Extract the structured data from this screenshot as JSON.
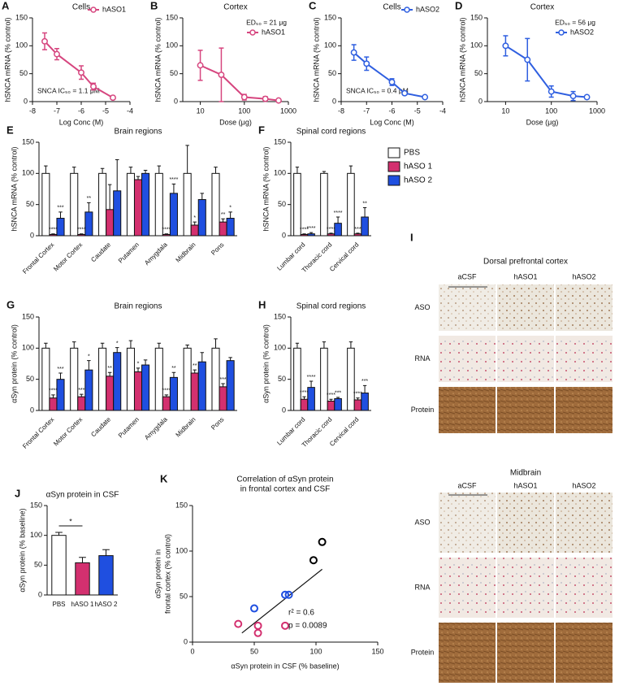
{
  "chart_data": [
    {
      "label": "A",
      "type": "line",
      "title": "Cells",
      "xlabel": "Log Conc (M)",
      "ylabel": "hSNCA mRNA (% control)",
      "xlim": [
        -8,
        -4
      ],
      "xticks": [
        -8,
        -7,
        -6,
        -5,
        -4
      ],
      "ylim": [
        0,
        150
      ],
      "yticks": [
        0,
        50,
        100,
        150
      ],
      "annotation": "SNCA IC₅₀ = 1.1 μM",
      "series": [
        {
          "name": "hASO1",
          "color": "#d6467f",
          "x": [
            -7.5,
            -7,
            -6,
            -5.5,
            -4.7
          ],
          "values": [
            108,
            85,
            52,
            27,
            7
          ],
          "errors": [
            15,
            10,
            12,
            6,
            2
          ]
        }
      ]
    },
    {
      "label": "B",
      "type": "line",
      "title": "Cortex",
      "xlabel": "Dose (μg)",
      "ylabel": "hSNCA mRNA (% control)",
      "xscale": "log",
      "xlim": [
        4,
        1000
      ],
      "xticks": [
        10,
        100,
        1000
      ],
      "ylim": [
        0,
        150
      ],
      "yticks": [
        0,
        50,
        100,
        150
      ],
      "annotation": "ED₅₀ = 21 μg",
      "series": [
        {
          "name": "hASO1",
          "color": "#d6467f",
          "x": [
            10,
            30,
            100,
            300,
            600
          ],
          "values": [
            65,
            48,
            8,
            5,
            2
          ],
          "errors": [
            27,
            48,
            5,
            4,
            2
          ]
        }
      ]
    },
    {
      "label": "C",
      "type": "line",
      "title": "Cells",
      "xlabel": "Log Conc (M)",
      "ylabel": "hSNCA mRNA (% control)",
      "xlim": [
        -8,
        -4
      ],
      "xticks": [
        -8,
        -7,
        -6,
        -5,
        -4
      ],
      "ylim": [
        0,
        150
      ],
      "yticks": [
        0,
        50,
        100,
        150
      ],
      "annotation": "SNCA IC₅₀ = 0.4 μM",
      "series": [
        {
          "name": "hASO2",
          "color": "#2f5fe0",
          "x": [
            -7.5,
            -7,
            -6,
            -5.5,
            -4.7
          ],
          "values": [
            88,
            68,
            35,
            15,
            8
          ],
          "errors": [
            14,
            12,
            6,
            3,
            2
          ]
        }
      ]
    },
    {
      "label": "D",
      "type": "line",
      "title": "Cortex",
      "xlabel": "Dose (μg)",
      "ylabel": "hSNCA mRNA (% control)",
      "xscale": "log",
      "xlim": [
        4,
        1000
      ],
      "xticks": [
        10,
        100,
        1000
      ],
      "ylim": [
        0,
        150
      ],
      "yticks": [
        0,
        50,
        100,
        150
      ],
      "annotation": "ED₅₀ = 56 μg",
      "series": [
        {
          "name": "hASO2",
          "color": "#2f5fe0",
          "x": [
            10,
            30,
            100,
            300,
            600
          ],
          "values": [
            100,
            75,
            18,
            10,
            8
          ],
          "errors": [
            18,
            38,
            10,
            8,
            3
          ]
        }
      ]
    },
    {
      "label": "E",
      "type": "bar",
      "title": "Brain regions",
      "ylabel": "hSNCA mRNA (% control)",
      "categories": [
        "Frontal Cortex",
        "Motor Cortex",
        "Caudate",
        "Putamen",
        "Amygdala",
        "Midbrain",
        "Pons"
      ],
      "ylim": [
        0,
        150
      ],
      "yticks": [
        0,
        50,
        100,
        150
      ],
      "series": [
        {
          "values": [
            100,
            100,
            100,
            100,
            100,
            100,
            100
          ],
          "errors": [
            12,
            10,
            8,
            10,
            12,
            45,
            10
          ]
        },
        {
          "values": [
            2,
            2,
            42,
            90,
            2,
            17,
            22
          ],
          "errors": [
            1,
            1,
            40,
            5,
            1,
            5,
            5
          ],
          "stars": [
            "****",
            "****",
            null,
            null,
            "****",
            "*",
            "**"
          ]
        },
        {
          "values": [
            28,
            38,
            72,
            100,
            68,
            58,
            28
          ],
          "errors": [
            10,
            15,
            50,
            5,
            15,
            10,
            10
          ],
          "stars": [
            "***",
            "**",
            null,
            null,
            "****",
            null,
            "*"
          ]
        }
      ]
    },
    {
      "label": "F",
      "type": "bar",
      "title": "Spinal cord regions",
      "ylabel": "hSNCA mRNA (% control)",
      "categories": [
        "Lumbar cord",
        "Thoracic cord",
        "Cervical cord"
      ],
      "ylim": [
        0,
        150
      ],
      "yticks": [
        0,
        50,
        100,
        150
      ],
      "series": [
        {
          "values": [
            100,
            100,
            100
          ],
          "errors": [
            10,
            3,
            12
          ]
        },
        {
          "values": [
            2,
            3,
            3
          ],
          "errors": [
            1,
            1,
            1
          ],
          "stars": [
            "****",
            "****",
            "***"
          ]
        },
        {
          "values": [
            3,
            20,
            30
          ],
          "errors": [
            2,
            10,
            15
          ],
          "stars": [
            "****",
            "****",
            "**"
          ]
        }
      ]
    },
    {
      "label": "G",
      "type": "bar",
      "title": "Brain regions",
      "ylabel": "αSyn protein (% control)",
      "categories": [
        "Frontal Cortex",
        "Motor Cortex",
        "Caudate",
        "Putamen",
        "Amygdala",
        "Midbrain",
        "Pons"
      ],
      "ylim": [
        0,
        150
      ],
      "yticks": [
        0,
        50,
        100,
        150
      ],
      "series": [
        {
          "values": [
            100,
            100,
            100,
            100,
            100,
            100,
            100
          ],
          "errors": [
            8,
            10,
            8,
            12,
            8,
            5,
            15
          ]
        },
        {
          "values": [
            20,
            22,
            55,
            62,
            22,
            60,
            38
          ],
          "errors": [
            5,
            4,
            6,
            6,
            3,
            5,
            5
          ],
          "stars": [
            "****",
            "***",
            "**",
            "*",
            "****",
            "**",
            "***"
          ]
        },
        {
          "values": [
            50,
            65,
            93,
            73,
            53,
            78,
            80
          ],
          "errors": [
            10,
            15,
            8,
            8,
            8,
            15,
            5
          ],
          "stars": [
            "***",
            "*",
            "*",
            null,
            "**",
            null,
            null
          ]
        }
      ]
    },
    {
      "label": "H",
      "type": "bar",
      "title": "Spinal cord regions",
      "ylabel": "αSyn protein (% control)",
      "categories": [
        "Lumbar cord",
        "Thoracic cord",
        "Cervical cord"
      ],
      "ylim": [
        0,
        150
      ],
      "yticks": [
        0,
        50,
        100,
        150
      ],
      "series": [
        {
          "values": [
            100,
            100,
            100
          ],
          "errors": [
            8,
            10,
            10
          ]
        },
        {
          "values": [
            18,
            15,
            17
          ],
          "errors": [
            4,
            3,
            3
          ],
          "stars": [
            "****",
            "****",
            "****"
          ]
        },
        {
          "values": [
            37,
            19,
            28
          ],
          "errors": [
            10,
            2,
            12
          ],
          "stars": [
            "****",
            "***",
            "***"
          ]
        }
      ]
    },
    {
      "label": "J",
      "type": "bar",
      "title": "αSyn protein in CSF",
      "ylabel": "αSyn protein (% baseline)",
      "categories": [
        "PBS",
        "hASO 1",
        "hASO 2"
      ],
      "ylim": [
        0,
        150
      ],
      "yticks": [
        0,
        50,
        100,
        150
      ],
      "series": [
        {
          "values": [
            100,
            54,
            66
          ],
          "errors": [
            5,
            9,
            10
          ]
        }
      ],
      "significance": {
        "label": "*",
        "categories": [
          "PBS",
          "hASO 1"
        ]
      }
    },
    {
      "label": "K",
      "type": "scatter",
      "title": [
        "Correlation of αSyn protein",
        "in frontal cortex and CSF"
      ],
      "xlabel": "αSyn protein in CSF (% baseline)",
      "ylabel": [
        "αSyn protein in",
        "frontal cortex (% control)"
      ],
      "xlim": [
        0,
        150
      ],
      "xticks": [
        0,
        50,
        100,
        150
      ],
      "ylim": [
        0,
        150
      ],
      "yticks": [
        0,
        50,
        100,
        150
      ],
      "series": [
        {
          "color": "#000000",
          "x": [
            105,
            98
          ],
          "values": [
            110,
            90
          ]
        },
        {
          "color": "#d3306f",
          "x": [
            37,
            53,
            53,
            75
          ],
          "values": [
            20,
            18,
            10,
            18
          ]
        },
        {
          "color": "#1f4fe0",
          "x": [
            75,
            78,
            50
          ],
          "values": [
            52,
            52,
            37
          ]
        }
      ],
      "fit": {
        "x": [
          40,
          105
        ],
        "y": [
          10,
          80
        ]
      },
      "annotations": [
        "r² = 0.6",
        "p = 0.0089"
      ]
    }
  ],
  "legend": [
    {
      "name": "PBS",
      "color": "#ffffff"
    },
    {
      "name": "hASO 1",
      "color": "#d3306f"
    },
    {
      "name": "hASO 2",
      "color": "#1f4fe0"
    }
  ],
  "panel_I": {
    "label": "I",
    "sections": [
      {
        "title": "Dorsal prefrontal cortex",
        "columns": [
          "aCSF",
          "hASO1",
          "hASO2"
        ],
        "rows": [
          "ASO",
          "RNA",
          "Protein"
        ]
      },
      {
        "title": "Midbrain",
        "columns": [
          "aCSF",
          "hASO1",
          "hASO2"
        ],
        "rows": [
          "ASO",
          "RNA",
          "Protein"
        ]
      }
    ]
  }
}
